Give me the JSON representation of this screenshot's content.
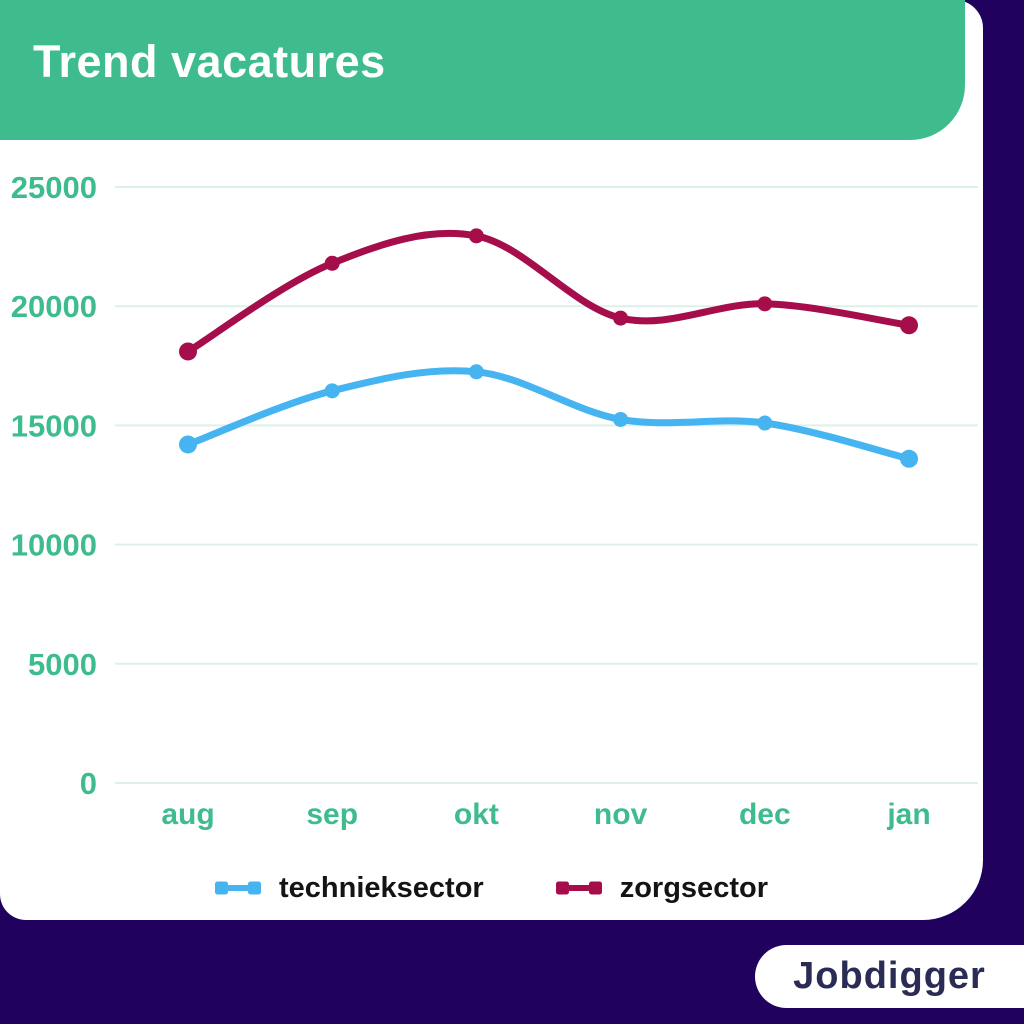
{
  "header": {
    "title": "Trend vacatures",
    "background_color": "#3ebc8e",
    "text_color": "#ffffff"
  },
  "page": {
    "background_color": "#21015e",
    "card_color": "#ffffff"
  },
  "logo": {
    "text": "Jobdigger",
    "text_color": "#2b2c55"
  },
  "chart_data": {
    "type": "line",
    "title": "Trend vacatures",
    "categories": [
      "aug",
      "sep",
      "okt",
      "nov",
      "dec",
      "jan"
    ],
    "series": [
      {
        "name": "technieksector",
        "color": "#45b4f1",
        "values": [
          14200,
          16450,
          17250,
          15250,
          15100,
          13600
        ]
      },
      {
        "name": "zorgsector",
        "color": "#a50d4b",
        "values": [
          18100,
          21800,
          22950,
          19500,
          20100,
          19200
        ]
      }
    ],
    "xlabel": "",
    "ylabel": "",
    "ylim": [
      0,
      25000
    ],
    "yticks": [
      0,
      5000,
      10000,
      15000,
      20000,
      25000
    ],
    "grid": "horizontal",
    "gridline_color": "#dcf1ea",
    "axis_label_color": "#3ebc8e",
    "legend_position": "bottom",
    "legend_text_color": "#141414",
    "line_style": "smooth",
    "point_markers": true
  }
}
